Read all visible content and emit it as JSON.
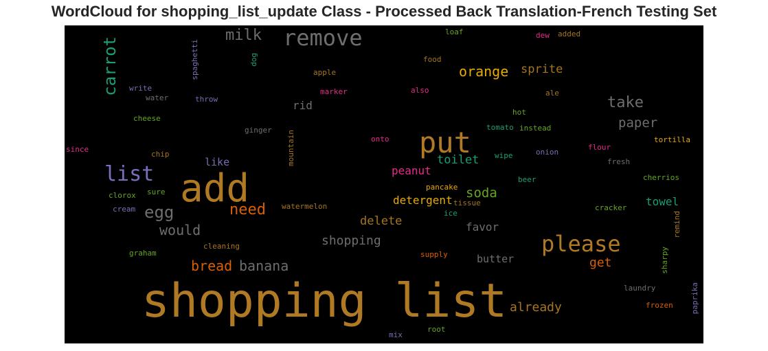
{
  "chart_data": {
    "type": "wordcloud",
    "title": "WordCloud for shopping_list_update Class - Processed Back Translation-French Testing Set",
    "background": "#000000",
    "words": [
      {
        "text": "shopping list",
        "color": "#b07a24"
      },
      {
        "text": "add",
        "color": "#b07a24"
      },
      {
        "text": "put",
        "color": "#b07a24"
      },
      {
        "text": "please",
        "color": "#b07a24"
      },
      {
        "text": "remove",
        "color": "#6e6e6e"
      },
      {
        "text": "list",
        "color": "#7a6fbf"
      },
      {
        "text": "milk",
        "color": "#6e6e6e"
      },
      {
        "text": "carrot",
        "color": "#1b9e77"
      },
      {
        "text": "orange",
        "color": "#e6ab02"
      },
      {
        "text": "take",
        "color": "#6e6e6e"
      },
      {
        "text": "egg",
        "color": "#6e6e6e"
      },
      {
        "text": "need",
        "color": "#d95f02"
      },
      {
        "text": "paper",
        "color": "#6e6e6e"
      },
      {
        "text": "sprite",
        "color": "#a6761d"
      },
      {
        "text": "soda",
        "color": "#66a61e"
      },
      {
        "text": "would",
        "color": "#6e6e6e"
      },
      {
        "text": "bread",
        "color": "#d95f02"
      },
      {
        "text": "banana",
        "color": "#6e6e6e"
      },
      {
        "text": "shopping",
        "color": "#6e6e6e"
      },
      {
        "text": "delete",
        "color": "#a6761d"
      },
      {
        "text": "already",
        "color": "#a6761d"
      },
      {
        "text": "toilet",
        "color": "#1b9e77"
      },
      {
        "text": "peanut",
        "color": "#e7298a"
      },
      {
        "text": "detergent",
        "color": "#e6ab02"
      },
      {
        "text": "towel",
        "color": "#1b9e77"
      },
      {
        "text": "get",
        "color": "#d95f02"
      },
      {
        "text": "rid",
        "color": "#6e6e6e"
      },
      {
        "text": "favor",
        "color": "#6e6e6e"
      },
      {
        "text": "butter",
        "color": "#6e6e6e"
      },
      {
        "text": "like",
        "color": "#7570b3"
      },
      {
        "text": "dew",
        "color": "#e7298a"
      },
      {
        "text": "added",
        "color": "#a6761d"
      },
      {
        "text": "loaf",
        "color": "#66a61e"
      },
      {
        "text": "food",
        "color": "#a6761d"
      },
      {
        "text": "apple",
        "color": "#a6761d"
      },
      {
        "text": "spaghetti",
        "color": "#7570b3"
      },
      {
        "text": "dog",
        "color": "#1b9e77"
      },
      {
        "text": "write",
        "color": "#7570b3"
      },
      {
        "text": "water",
        "color": "#6e6e6e"
      },
      {
        "text": "throw",
        "color": "#7570b3"
      },
      {
        "text": "marker",
        "color": "#e7298a"
      },
      {
        "text": "also",
        "color": "#e7298a"
      },
      {
        "text": "ale",
        "color": "#a6761d"
      },
      {
        "text": "hot",
        "color": "#66a61e"
      },
      {
        "text": "cheese",
        "color": "#66a61e"
      },
      {
        "text": "ginger",
        "color": "#6e6e6e"
      },
      {
        "text": "mountain",
        "color": "#a6761d"
      },
      {
        "text": "tomato",
        "color": "#1b9e77"
      },
      {
        "text": "instead",
        "color": "#66a61e"
      },
      {
        "text": "onto",
        "color": "#e7298a"
      },
      {
        "text": "since",
        "color": "#e7298a"
      },
      {
        "text": "chip",
        "color": "#a6761d"
      },
      {
        "text": "flour",
        "color": "#e7298a"
      },
      {
        "text": "tortilla",
        "color": "#e6ab02"
      },
      {
        "text": "wipe",
        "color": "#1b9e77"
      },
      {
        "text": "onion",
        "color": "#7570b3"
      },
      {
        "text": "fresh",
        "color": "#6e6e6e"
      },
      {
        "text": "beer",
        "color": "#1b9e77"
      },
      {
        "text": "cherrios",
        "color": "#66a61e"
      },
      {
        "text": "sure",
        "color": "#66a61e"
      },
      {
        "text": "pancake",
        "color": "#e6ab02"
      },
      {
        "text": "clorox",
        "color": "#66a61e"
      },
      {
        "text": "tissue",
        "color": "#a6761d"
      },
      {
        "text": "cream",
        "color": "#7570b3"
      },
      {
        "text": "watermelon",
        "color": "#a6761d"
      },
      {
        "text": "ice",
        "color": "#1b9e77"
      },
      {
        "text": "cracker",
        "color": "#66a61e"
      },
      {
        "text": "remind",
        "color": "#a6761d"
      },
      {
        "text": "cleaning",
        "color": "#a6761d"
      },
      {
        "text": "graham",
        "color": "#66a61e"
      },
      {
        "text": "supply",
        "color": "#d95f02"
      },
      {
        "text": "sharpy",
        "color": "#66a61e"
      },
      {
        "text": "laundry",
        "color": "#6e6e6e"
      },
      {
        "text": "paprika",
        "color": "#7570b3"
      },
      {
        "text": "frozen",
        "color": "#d95f02"
      },
      {
        "text": "mix",
        "color": "#7570b3"
      },
      {
        "text": "root",
        "color": "#66a61e"
      }
    ]
  }
}
